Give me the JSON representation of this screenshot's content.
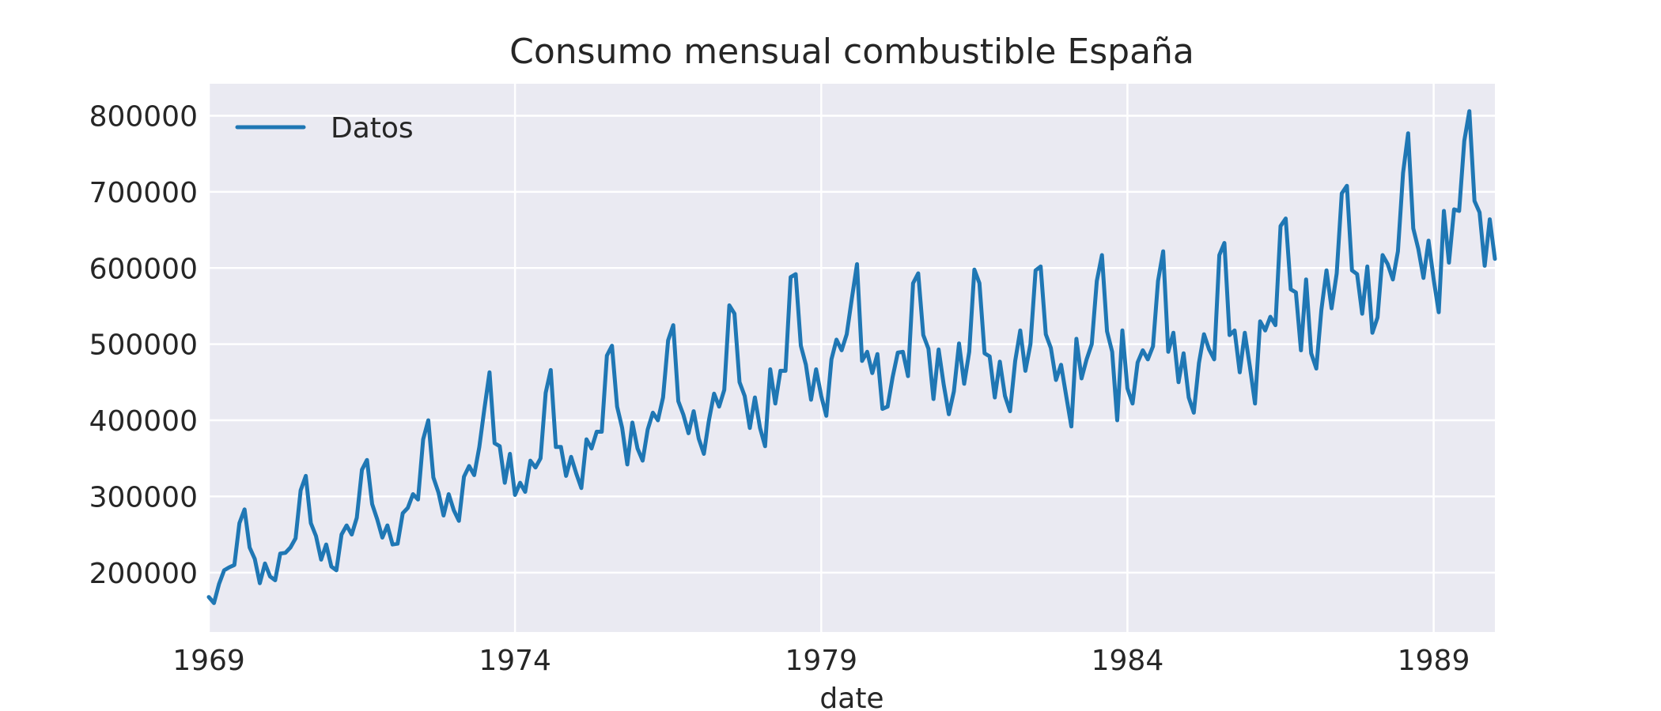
{
  "chart_data": {
    "type": "line",
    "title": "Consumo mensual combustible España",
    "xlabel": "date",
    "ylabel": "",
    "x_tick_labels": [
      "1969",
      "1974",
      "1979",
      "1984",
      "1989"
    ],
    "y_tick_labels": [
      "200000",
      "300000",
      "400000",
      "500000",
      "600000",
      "700000",
      "800000"
    ],
    "x_range": [
      "1969-01",
      "1990-01"
    ],
    "ylim": [
      122000,
      842000
    ],
    "grid": true,
    "legend_position": "top-left",
    "colors": {
      "background": "#eaeaf2",
      "grid": "#ffffff",
      "line": "#1f77b4"
    },
    "series": [
      {
        "name": "Datos",
        "color": "#1f77b4",
        "points": [
          [
            "1969-01",
            168000
          ],
          [
            "1969-02",
            160000
          ],
          [
            "1969-03",
            185000
          ],
          [
            "1969-04",
            203000
          ],
          [
            "1969-05",
            207000
          ],
          [
            "1969-06",
            210000
          ],
          [
            "1969-07",
            265000
          ],
          [
            "1969-08",
            283000
          ],
          [
            "1969-09",
            233000
          ],
          [
            "1969-10",
            218000
          ],
          [
            "1969-11",
            186000
          ],
          [
            "1969-12",
            212000
          ],
          [
            "1970-01",
            195000
          ],
          [
            "1970-02",
            190000
          ],
          [
            "1970-03",
            225000
          ],
          [
            "1970-04",
            226000
          ],
          [
            "1970-05",
            233000
          ],
          [
            "1970-06",
            245000
          ],
          [
            "1970-07",
            308000
          ],
          [
            "1970-08",
            327000
          ],
          [
            "1970-09",
            265000
          ],
          [
            "1970-10",
            248000
          ],
          [
            "1970-11",
            217000
          ],
          [
            "1970-12",
            237000
          ],
          [
            "1971-01",
            208000
          ],
          [
            "1971-02",
            203000
          ],
          [
            "1971-03",
            250000
          ],
          [
            "1971-04",
            262000
          ],
          [
            "1971-05",
            250000
          ],
          [
            "1971-06",
            272000
          ],
          [
            "1971-07",
            335000
          ],
          [
            "1971-08",
            348000
          ],
          [
            "1971-09",
            290000
          ],
          [
            "1971-10",
            270000
          ],
          [
            "1971-11",
            246000
          ],
          [
            "1971-12",
            262000
          ],
          [
            "1972-01",
            237000
          ],
          [
            "1972-02",
            238000
          ],
          [
            "1972-03",
            278000
          ],
          [
            "1972-04",
            285000
          ],
          [
            "1972-05",
            303000
          ],
          [
            "1972-06",
            296000
          ],
          [
            "1972-07",
            375000
          ],
          [
            "1972-08",
            400000
          ],
          [
            "1972-09",
            325000
          ],
          [
            "1972-10",
            305000
          ],
          [
            "1972-11",
            275000
          ],
          [
            "1972-12",
            303000
          ],
          [
            "1973-01",
            282000
          ],
          [
            "1973-02",
            268000
          ],
          [
            "1973-03",
            326000
          ],
          [
            "1973-04",
            340000
          ],
          [
            "1973-05",
            328000
          ],
          [
            "1973-06",
            365000
          ],
          [
            "1973-07",
            415000
          ],
          [
            "1973-08",
            463000
          ],
          [
            "1973-09",
            370000
          ],
          [
            "1973-10",
            366000
          ],
          [
            "1973-11",
            318000
          ],
          [
            "1973-12",
            356000
          ],
          [
            "1974-01",
            302000
          ],
          [
            "1974-02",
            318000
          ],
          [
            "1974-03",
            306000
          ],
          [
            "1974-04",
            347000
          ],
          [
            "1974-05",
            338000
          ],
          [
            "1974-06",
            350000
          ],
          [
            "1974-07",
            436000
          ],
          [
            "1974-08",
            466000
          ],
          [
            "1974-09",
            365000
          ],
          [
            "1974-10",
            365000
          ],
          [
            "1974-11",
            327000
          ],
          [
            "1974-12",
            352000
          ],
          [
            "1975-01",
            330000
          ],
          [
            "1975-02",
            311000
          ],
          [
            "1975-03",
            375000
          ],
          [
            "1975-04",
            363000
          ],
          [
            "1975-05",
            385000
          ],
          [
            "1975-06",
            385000
          ],
          [
            "1975-07",
            485000
          ],
          [
            "1975-08",
            498000
          ],
          [
            "1975-09",
            418000
          ],
          [
            "1975-10",
            390000
          ],
          [
            "1975-11",
            342000
          ],
          [
            "1975-12",
            397000
          ],
          [
            "1976-01",
            363000
          ],
          [
            "1976-02",
            347000
          ],
          [
            "1976-03",
            388000
          ],
          [
            "1976-04",
            410000
          ],
          [
            "1976-05",
            400000
          ],
          [
            "1976-06",
            430000
          ],
          [
            "1976-07",
            505000
          ],
          [
            "1976-08",
            525000
          ],
          [
            "1976-09",
            425000
          ],
          [
            "1976-10",
            407000
          ],
          [
            "1976-11",
            383000
          ],
          [
            "1976-12",
            412000
          ],
          [
            "1977-01",
            376000
          ],
          [
            "1977-02",
            356000
          ],
          [
            "1977-03",
            400000
          ],
          [
            "1977-04",
            435000
          ],
          [
            "1977-05",
            418000
          ],
          [
            "1977-06",
            440000
          ],
          [
            "1977-07",
            551000
          ],
          [
            "1977-08",
            540000
          ],
          [
            "1977-09",
            450000
          ],
          [
            "1977-10",
            432000
          ],
          [
            "1977-11",
            390000
          ],
          [
            "1977-12",
            430000
          ],
          [
            "1978-01",
            390000
          ],
          [
            "1978-02",
            366000
          ],
          [
            "1978-03",
            467000
          ],
          [
            "1978-04",
            422000
          ],
          [
            "1978-05",
            465000
          ],
          [
            "1978-06",
            465000
          ],
          [
            "1978-07",
            588000
          ],
          [
            "1978-08",
            592000
          ],
          [
            "1978-09",
            498000
          ],
          [
            "1978-10",
            473000
          ],
          [
            "1978-11",
            427000
          ],
          [
            "1978-12",
            467000
          ],
          [
            "1979-01",
            432000
          ],
          [
            "1979-02",
            406000
          ],
          [
            "1979-03",
            480000
          ],
          [
            "1979-04",
            506000
          ],
          [
            "1979-05",
            492000
          ],
          [
            "1979-06",
            513000
          ],
          [
            "1979-07",
            560000
          ],
          [
            "1979-08",
            605000
          ],
          [
            "1979-09",
            478000
          ],
          [
            "1979-10",
            490000
          ],
          [
            "1979-11",
            462000
          ],
          [
            "1979-12",
            487000
          ],
          [
            "1980-01",
            415000
          ],
          [
            "1980-02",
            418000
          ],
          [
            "1980-03",
            457000
          ],
          [
            "1980-04",
            489000
          ],
          [
            "1980-05",
            490000
          ],
          [
            "1980-06",
            458000
          ],
          [
            "1980-07",
            580000
          ],
          [
            "1980-08",
            593000
          ],
          [
            "1980-09",
            512000
          ],
          [
            "1980-10",
            494000
          ],
          [
            "1980-11",
            428000
          ],
          [
            "1980-12",
            493000
          ],
          [
            "1981-01",
            447000
          ],
          [
            "1981-02",
            408000
          ],
          [
            "1981-03",
            438000
          ],
          [
            "1981-04",
            501000
          ],
          [
            "1981-05",
            448000
          ],
          [
            "1981-06",
            490000
          ],
          [
            "1981-07",
            598000
          ],
          [
            "1981-08",
            580000
          ],
          [
            "1981-09",
            488000
          ],
          [
            "1981-10",
            484000
          ],
          [
            "1981-11",
            430000
          ],
          [
            "1981-12",
            477000
          ],
          [
            "1982-01",
            432000
          ],
          [
            "1982-02",
            412000
          ],
          [
            "1982-03",
            478000
          ],
          [
            "1982-04",
            518000
          ],
          [
            "1982-05",
            465000
          ],
          [
            "1982-06",
            500000
          ],
          [
            "1982-07",
            597000
          ],
          [
            "1982-08",
            602000
          ],
          [
            "1982-09",
            513000
          ],
          [
            "1982-10",
            495000
          ],
          [
            "1982-11",
            453000
          ],
          [
            "1982-12",
            473000
          ],
          [
            "1983-01",
            432000
          ],
          [
            "1983-02",
            392000
          ],
          [
            "1983-03",
            507000
          ],
          [
            "1983-04",
            455000
          ],
          [
            "1983-05",
            480000
          ],
          [
            "1983-06",
            500000
          ],
          [
            "1983-07",
            583000
          ],
          [
            "1983-08",
            617000
          ],
          [
            "1983-09",
            517000
          ],
          [
            "1983-10",
            490000
          ],
          [
            "1983-11",
            400000
          ],
          [
            "1983-12",
            518000
          ],
          [
            "1984-01",
            442000
          ],
          [
            "1984-02",
            422000
          ],
          [
            "1984-03",
            476000
          ],
          [
            "1984-04",
            492000
          ],
          [
            "1984-05",
            480000
          ],
          [
            "1984-06",
            497000
          ],
          [
            "1984-07",
            583000
          ],
          [
            "1984-08",
            622000
          ],
          [
            "1984-09",
            490000
          ],
          [
            "1984-10",
            515000
          ],
          [
            "1984-11",
            450000
          ],
          [
            "1984-12",
            488000
          ],
          [
            "1985-01",
            430000
          ],
          [
            "1985-02",
            410000
          ],
          [
            "1985-03",
            475000
          ],
          [
            "1985-04",
            513000
          ],
          [
            "1985-05",
            493000
          ],
          [
            "1985-06",
            480000
          ],
          [
            "1985-07",
            617000
          ],
          [
            "1985-08",
            633000
          ],
          [
            "1985-09",
            512000
          ],
          [
            "1985-10",
            518000
          ],
          [
            "1985-11",
            463000
          ],
          [
            "1985-12",
            515000
          ],
          [
            "1986-01",
            470000
          ],
          [
            "1986-02",
            422000
          ],
          [
            "1986-03",
            530000
          ],
          [
            "1986-04",
            518000
          ],
          [
            "1986-05",
            536000
          ],
          [
            "1986-06",
            525000
          ],
          [
            "1986-07",
            655000
          ],
          [
            "1986-08",
            665000
          ],
          [
            "1986-09",
            572000
          ],
          [
            "1986-10",
            568000
          ],
          [
            "1986-11",
            492000
          ],
          [
            "1986-12",
            585000
          ],
          [
            "1987-01",
            488000
          ],
          [
            "1987-02",
            468000
          ],
          [
            "1987-03",
            545000
          ],
          [
            "1987-04",
            597000
          ],
          [
            "1987-05",
            547000
          ],
          [
            "1987-06",
            593000
          ],
          [
            "1987-07",
            698000
          ],
          [
            "1987-08",
            708000
          ],
          [
            "1987-09",
            597000
          ],
          [
            "1987-10",
            592000
          ],
          [
            "1987-11",
            540000
          ],
          [
            "1987-12",
            602000
          ],
          [
            "1988-01",
            515000
          ],
          [
            "1988-02",
            535000
          ],
          [
            "1988-03",
            617000
          ],
          [
            "1988-04",
            605000
          ],
          [
            "1988-05",
            585000
          ],
          [
            "1988-06",
            622000
          ],
          [
            "1988-07",
            725000
          ],
          [
            "1988-08",
            777000
          ],
          [
            "1988-09",
            652000
          ],
          [
            "1988-10",
            625000
          ],
          [
            "1988-11",
            587000
          ],
          [
            "1988-12",
            636000
          ],
          [
            "1989-01",
            585000
          ],
          [
            "1989-02",
            542000
          ],
          [
            "1989-03",
            675000
          ],
          [
            "1989-04",
            607000
          ],
          [
            "1989-05",
            677000
          ],
          [
            "1989-06",
            675000
          ],
          [
            "1989-07",
            767000
          ],
          [
            "1989-08",
            806000
          ],
          [
            "1989-09",
            688000
          ],
          [
            "1989-10",
            673000
          ],
          [
            "1989-11",
            603000
          ],
          [
            "1989-12",
            664000
          ],
          [
            "1990-01",
            612000
          ]
        ]
      }
    ]
  }
}
